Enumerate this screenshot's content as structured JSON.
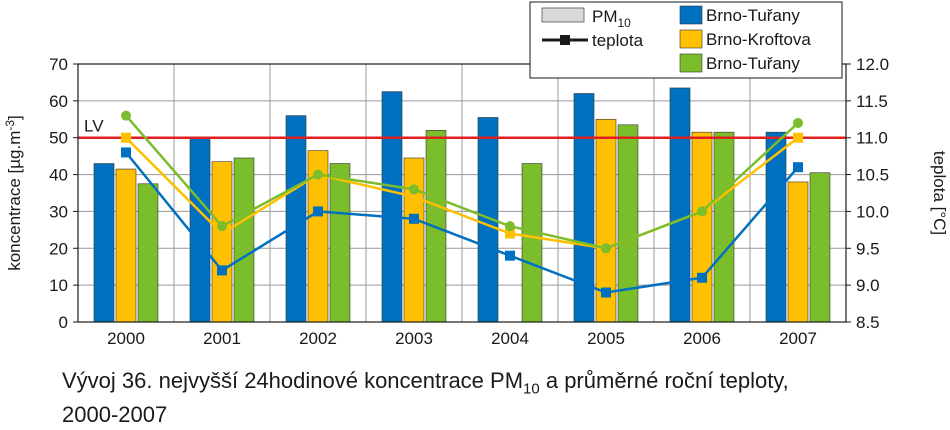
{
  "chart_data": {
    "type": "bar",
    "categories": [
      "2000",
      "2001",
      "2002",
      "2003",
      "2004",
      "2005",
      "2006",
      "2007"
    ],
    "series": [
      {
        "name": "Brno-Tuřany",
        "kind": "bar",
        "color": "#0070c0",
        "values": [
          43,
          50,
          56,
          62.5,
          55.5,
          62,
          63.5,
          51.5
        ]
      },
      {
        "name": "Brno-Kroftova",
        "kind": "bar",
        "color": "#ffc000",
        "values": [
          41.5,
          43.5,
          46.5,
          44.5,
          null,
          55,
          51.5,
          38
        ]
      },
      {
        "name": "Brno-Tuřany",
        "kind": "bar",
        "color": "#7cbd2b",
        "values": [
          37.5,
          44.5,
          43,
          52,
          43,
          53.5,
          51.5,
          40.5
        ]
      }
    ],
    "temperature_series": [
      {
        "name": "Brno-Tuřany",
        "color": "#0070c0",
        "values": [
          10.8,
          9.2,
          10.0,
          9.9,
          9.4,
          8.9,
          9.1,
          10.6
        ]
      },
      {
        "name": "Brno-Kroftova",
        "color": "#ffc000",
        "values": [
          11.0,
          9.7,
          10.5,
          10.2,
          9.7,
          9.5,
          10.0,
          11.0
        ]
      },
      {
        "name": "Brno-Tuřany",
        "color": "#7cbd2b",
        "values": [
          11.3,
          9.8,
          10.5,
          10.3,
          9.8,
          9.5,
          10.0,
          11.2
        ]
      }
    ],
    "limit_line": {
      "label": "LV",
      "value": 50,
      "color": "#e02020"
    },
    "ylabel": "koncentrace [µg.m-3]",
    "ylabel_parts": {
      "base": "koncentrace [µg.m",
      "sup": "-3",
      "end": "]"
    },
    "y2label": "teplota [°C]",
    "ylim": [
      0,
      70
    ],
    "yticks": [
      "0",
      "10",
      "20",
      "30",
      "40",
      "50",
      "60",
      "70"
    ],
    "y2lim": [
      8.5,
      12.0
    ],
    "y2ticks": [
      "8.5",
      "9.0",
      "9.5",
      "10.0",
      "10.5",
      "11.0",
      "11.5",
      "12.0"
    ],
    "legend": {
      "placement": "top-right",
      "pm_label": "PM",
      "pm_sub": "10",
      "temp_label": "teplota",
      "pm_color": "#d9d9d9",
      "temp_color": "#1a1a1a"
    },
    "grid": true
  },
  "caption": {
    "line1_prefix": "Vývoj 36. nejvyšší 24hodinové koncentrace PM",
    "line1_sub": "10",
    "line1_suffix": " a průměrné roční teploty,",
    "line2": "2000-2007"
  }
}
